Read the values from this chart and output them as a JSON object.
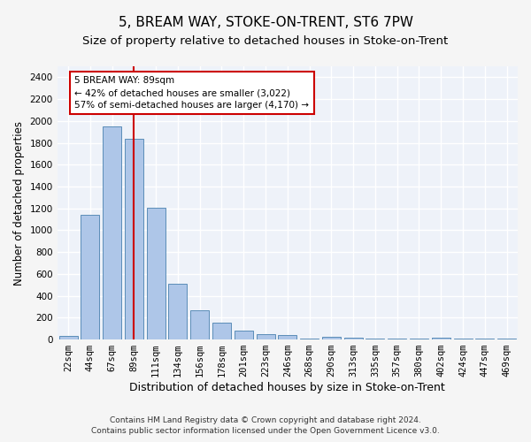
{
  "title": "5, BREAM WAY, STOKE-ON-TRENT, ST6 7PW",
  "subtitle": "Size of property relative to detached houses in Stoke-on-Trent",
  "xlabel": "Distribution of detached houses by size in Stoke-on-Trent",
  "ylabel": "Number of detached properties",
  "categories": [
    "22sqm",
    "44sqm",
    "67sqm",
    "89sqm",
    "111sqm",
    "134sqm",
    "156sqm",
    "178sqm",
    "201sqm",
    "223sqm",
    "246sqm",
    "268sqm",
    "290sqm",
    "313sqm",
    "335sqm",
    "357sqm",
    "380sqm",
    "402sqm",
    "424sqm",
    "447sqm",
    "469sqm"
  ],
  "values": [
    30,
    1145,
    1950,
    1835,
    1205,
    510,
    265,
    155,
    80,
    50,
    45,
    5,
    25,
    15,
    5,
    5,
    5,
    20,
    5,
    5,
    5
  ],
  "bar_color": "#aec6e8",
  "bar_edge_color": "#5b8db8",
  "vline_x_index": 3,
  "vline_color": "#cc0000",
  "annotation_line1": "5 BREAM WAY: 89sqm",
  "annotation_line2": "← 42% of detached houses are smaller (3,022)",
  "annotation_line3": "57% of semi-detached houses are larger (4,170) →",
  "annotation_box_color": "#ffffff",
  "annotation_box_edge_color": "#cc0000",
  "ylim": [
    0,
    2500
  ],
  "yticks": [
    0,
    200,
    400,
    600,
    800,
    1000,
    1200,
    1400,
    1600,
    1800,
    2000,
    2200,
    2400
  ],
  "background_color": "#eef2f9",
  "grid_color": "#ffffff",
  "footer_line1": "Contains HM Land Registry data © Crown copyright and database right 2024.",
  "footer_line2": "Contains public sector information licensed under the Open Government Licence v3.0.",
  "title_fontsize": 11,
  "subtitle_fontsize": 9.5,
  "xlabel_fontsize": 9,
  "ylabel_fontsize": 8.5,
  "tick_fontsize": 7.5,
  "annotation_fontsize": 7.5,
  "footer_fontsize": 6.5
}
